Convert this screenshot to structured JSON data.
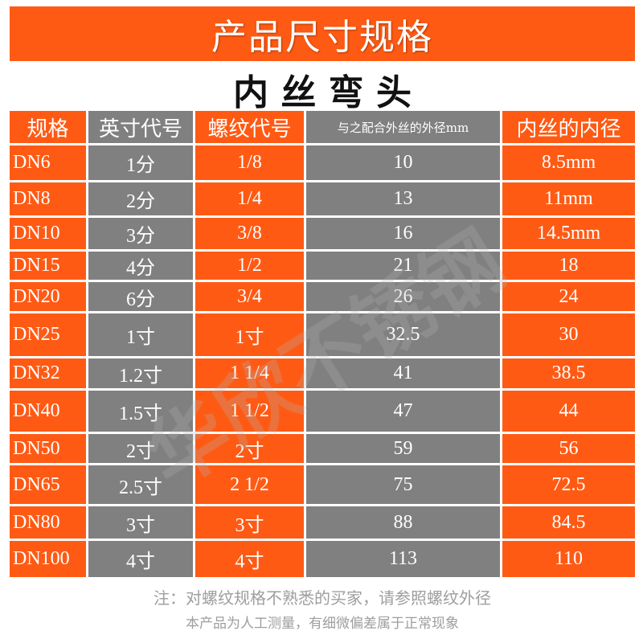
{
  "banner": {
    "title": "产品尺寸规格"
  },
  "product_name": "内 丝 弯 头",
  "table": {
    "headers": {
      "spec": "规格",
      "inch_code": "英寸代号",
      "thread_code": "螺纹代号",
      "matching_od": "与之配合外丝的外径mm",
      "inner_diameter": "内丝的内径"
    },
    "rows": [
      {
        "spec": "DN6",
        "inch": "1分",
        "thread": "1/8",
        "od": "10",
        "id": "8.5mm"
      },
      {
        "spec": "DN8",
        "inch": "2分",
        "thread": "1/4",
        "od": "13",
        "id": "11mm"
      },
      {
        "spec": "DN10",
        "inch": "3分",
        "thread": "3/8",
        "od": "16",
        "id": "14.5mm"
      },
      {
        "spec": "DN15",
        "inch": "4分",
        "thread": "1/2",
        "od": "21",
        "id": "18"
      },
      {
        "spec": "DN20",
        "inch": "6分",
        "thread": "3/4",
        "od": "26",
        "id": "24"
      },
      {
        "spec": "DN25",
        "inch": "1寸",
        "thread": "1寸",
        "od": "32.5",
        "id": "30"
      },
      {
        "spec": "DN32",
        "inch": "1.2寸",
        "thread": "1 1/4",
        "od": "41",
        "id": "38.5"
      },
      {
        "spec": "DN40",
        "inch": "1.5寸",
        "thread": "1 1/2",
        "od": "47",
        "id": "44"
      },
      {
        "spec": "DN50",
        "inch": "2寸",
        "thread": "2寸",
        "od": "59",
        "id": "56"
      },
      {
        "spec": "DN65",
        "inch": "2.5寸",
        "thread": "2 1/2",
        "od": "75",
        "id": "72.5"
      },
      {
        "spec": "DN80",
        "inch": "3寸",
        "thread": "3寸",
        "od": "88",
        "id": "84.5"
      },
      {
        "spec": "DN100",
        "inch": "4寸",
        "thread": "4寸",
        "od": "113",
        "id": "110"
      }
    ]
  },
  "notes": [
    "注：对螺纹规格不熟悉的买家，请参照螺纹外径",
    "本产品为人工测量，有细微偏差属于正常现象"
  ],
  "watermark": "华欣不锈钢",
  "colors": {
    "orange": "#FF5A14",
    "gray": "#808080",
    "cell_text": "#FFFFFF",
    "note_text": "#9E9E9E"
  }
}
